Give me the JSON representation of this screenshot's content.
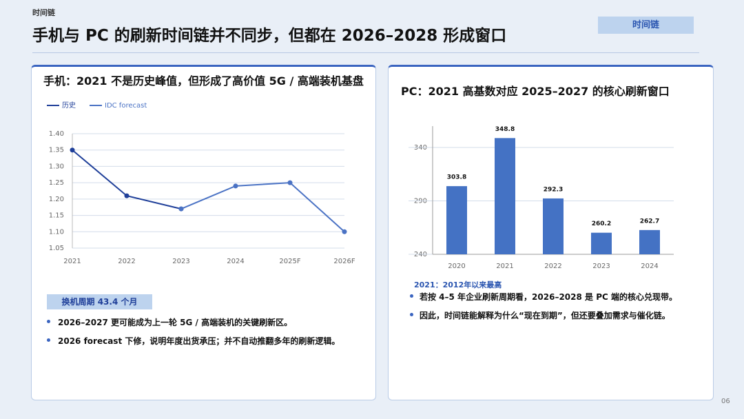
{
  "header": {
    "section": "时间链",
    "title": "手机与 PC 的刷新时间链并不同步，但都在 2026–2028 形成窗口",
    "tag": "时间链"
  },
  "chart_data": [
    {
      "type": "line",
      "title": "手机：2021 不是历史峰值，但形成了高价值 5G / 高端装机基盘",
      "categories": [
        "2021",
        "2022",
        "2023",
        "2024",
        "2025F",
        "2026F"
      ],
      "series": [
        {
          "name": "历史",
          "color": "#1f3f99",
          "values": [
            1.35,
            1.21,
            1.17,
            null,
            null,
            null
          ]
        },
        {
          "name": "IDC forecast",
          "color": "#4a72c4",
          "values": [
            null,
            null,
            1.17,
            1.24,
            1.25,
            1.1
          ]
        }
      ],
      "ylim": [
        1.05,
        1.4
      ],
      "yticks": [
        1.05,
        {
          "value": 1.1,
          "label": "1.10"
        },
        1.15,
        {
          "value": 1.2,
          "label": "1.20"
        },
        1.25,
        {
          "value": 1.3,
          "label": "1.30"
        },
        1.35,
        {
          "value": 1.4,
          "label": "1.40"
        }
      ],
      "grid": true,
      "legend": "top-left"
    },
    {
      "type": "bar",
      "title": "PC：2021 高基数对应 2025–2027 的核心刷新窗口",
      "categories": [
        "2020",
        "2021",
        "2022",
        "2023",
        "2024"
      ],
      "values": [
        303.8,
        348.8,
        292.3,
        260.2,
        262.7
      ],
      "color": "#4472c4",
      "ylim": [
        240,
        360
      ],
      "yticks": [
        240,
        290,
        340
      ],
      "grid": true
    }
  ],
  "left_panel": {
    "badge": "换机周期 43.4 个月",
    "bullets": [
      "2026–2027 更可能成为上一轮 5G / 高端装机的关键刷新区。",
      "2026 forecast 下修，说明年度出货承压；并不自动推翻多年的刷新逻辑。"
    ]
  },
  "right_panel": {
    "note": "2021：2012年以来最高",
    "bullets": [
      "若按 4–5 年企业刷新周期看，2026–2028 是 PC 端的核心兑现带。",
      "因此，时间链能解释为什么“现在到期”，但还要叠加需求与催化链。"
    ]
  },
  "page_number": "06"
}
